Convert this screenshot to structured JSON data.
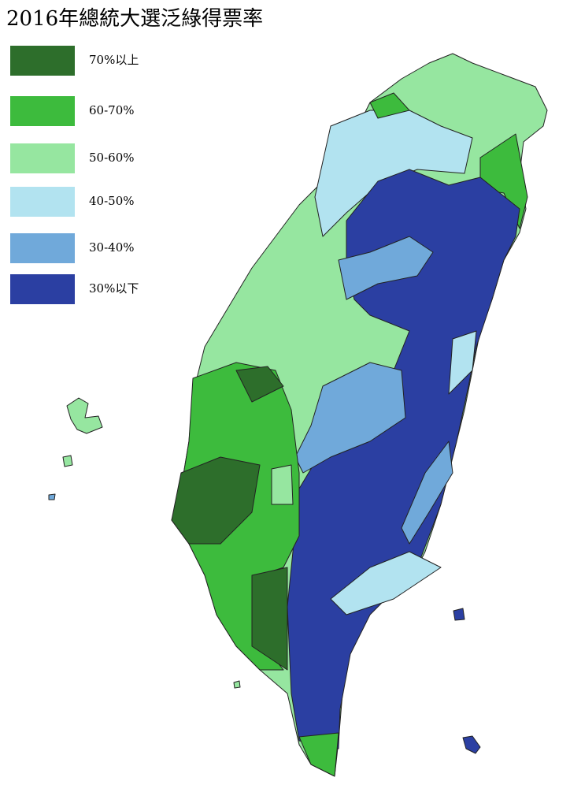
{
  "title": "2016年總統大選泛綠得票率",
  "legend": [
    {
      "label": "70%以上",
      "color": "#2d6e2b"
    },
    {
      "label": "60-70%",
      "color": "#3dbb3d"
    },
    {
      "label": "50-60%",
      "color": "#96e6a0"
    },
    {
      "label": "40-50%",
      "color": "#b2e3f0"
    },
    {
      "label": "30-40%",
      "color": "#70a9da"
    },
    {
      "label": "30%以下",
      "color": "#2b3fa2"
    }
  ]
}
